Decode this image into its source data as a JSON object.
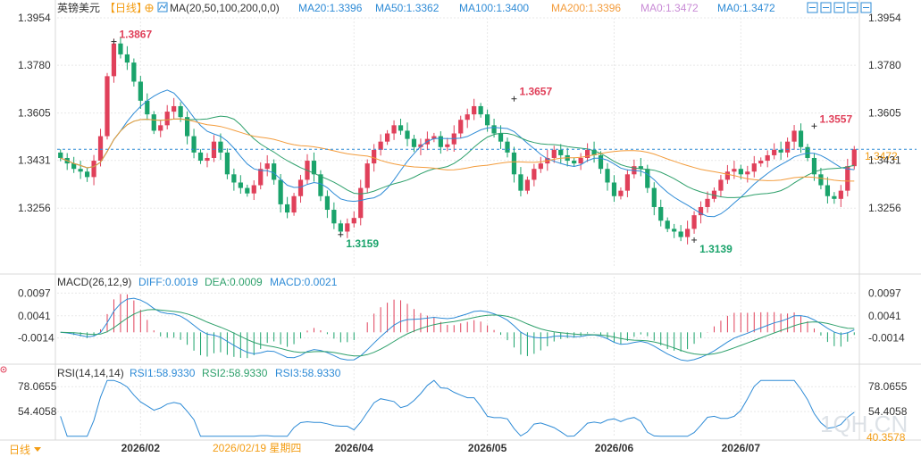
{
  "header": {
    "symbol": "英镑美元",
    "period": "【日线】",
    "ma_label": "MA(20,50,100,200,0,0)",
    "ma_values": [
      {
        "label": "MA20:1.3396",
        "color": "#2e8bd6"
      },
      {
        "label": "MA50:1.3362",
        "color": "#2e8bd6"
      },
      {
        "label": "MA100:1.3400",
        "color": "#2e8bd6"
      },
      {
        "label": "MA200:1.3396",
        "color": "#f39c3c"
      },
      {
        "label": "MA0:1.3472",
        "color": "#c98bd6"
      },
      {
        "label": "MA0:1.3472",
        "color": "#2e8bd6"
      }
    ],
    "window_icons": [
      "expand-icon",
      "compress-icon",
      "maximize-icon",
      "restore-icon",
      "next-icon"
    ]
  },
  "macd_header": {
    "label": "MACD(26,12,9)",
    "diff": "DIFF:0.0019",
    "dea": "DEA:0.0009",
    "macd": "MACD:0.0021"
  },
  "rsi_header": {
    "label": "RSI(14,14,14)",
    "rsi1": "RSI1:58.9330",
    "rsi2": "RSI2:58.9330",
    "rsi3": "RSI3:58.9330"
  },
  "footer": {
    "period_label": "日线",
    "cursor_date": "2026/02/19 星期四",
    "watermark": "1QH.CN"
  },
  "colors": {
    "up": "#e0405a",
    "down": "#1aa36b",
    "ma_blue": "#2e8bd6",
    "ma_green": "#2ea06b",
    "ma_orange": "#f39c3c",
    "grid": "#e8e8e8",
    "current_price": "#f39c12"
  },
  "chart_data": [
    {
      "type": "candlestick",
      "title": "英镑美元【日线】",
      "y_ticks": [
        "1.3954",
        "1.3780",
        "1.3605",
        "1.3431",
        "1.3256"
      ],
      "y_tick_values": [
        1.3954,
        1.378,
        1.3605,
        1.3431,
        1.3256
      ],
      "ylim": [
        1.307,
        1.3954
      ],
      "x_ticks": [
        "2026/02",
        "2026/04",
        "2026/05",
        "2026/06",
        "2026/07"
      ],
      "x_tick_bar_index": [
        12,
        44,
        64,
        83,
        102
      ],
      "annotations": [
        {
          "text": "1.3867",
          "bar": 8,
          "value": 1.3867,
          "color": "#e0405a"
        },
        {
          "text": "1.3159",
          "bar": 42,
          "value": 1.3159,
          "color": "#1aa36b"
        },
        {
          "text": "1.3657",
          "bar": 68,
          "value": 1.3657,
          "color": "#e0405a"
        },
        {
          "text": "1.3139",
          "bar": 95,
          "value": 1.3139,
          "color": "#1aa36b"
        },
        {
          "text": "1.3557",
          "bar": 113,
          "value": 1.3557,
          "color": "#e0405a"
        }
      ],
      "current_price": {
        "label": "1.3472",
        "value": 1.3472
      },
      "ohlc_closes": [
        1.344,
        1.342,
        1.34,
        1.339,
        1.337,
        1.343,
        1.352,
        1.374,
        1.386,
        1.382,
        1.379,
        1.372,
        1.365,
        1.36,
        1.354,
        1.356,
        1.361,
        1.363,
        1.359,
        1.352,
        1.346,
        1.343,
        1.344,
        1.35,
        1.346,
        1.338,
        1.335,
        1.333,
        1.331,
        1.334,
        1.34,
        1.342,
        1.336,
        1.327,
        1.324,
        1.33,
        1.336,
        1.343,
        1.338,
        1.33,
        1.325,
        1.32,
        1.317,
        1.32,
        1.322,
        1.333,
        1.342,
        1.347,
        1.35,
        1.353,
        1.356,
        1.354,
        1.351,
        1.348,
        1.349,
        1.351,
        1.352,
        1.348,
        1.349,
        1.353,
        1.358,
        1.36,
        1.363,
        1.36,
        1.356,
        1.353,
        1.35,
        1.346,
        1.338,
        1.332,
        1.336,
        1.34,
        1.342,
        1.344,
        1.347,
        1.345,
        1.343,
        1.342,
        1.344,
        1.347,
        1.345,
        1.34,
        1.335,
        1.33,
        1.332,
        1.338,
        1.341,
        1.34,
        1.333,
        1.326,
        1.321,
        1.318,
        1.317,
        1.315,
        1.318,
        1.323,
        1.326,
        1.329,
        1.332,
        1.336,
        1.339,
        1.34,
        1.338,
        1.339,
        1.342,
        1.343,
        1.345,
        1.347,
        1.346,
        1.35,
        1.354,
        1.348,
        1.344,
        1.338,
        1.334,
        1.33,
        1.329,
        1.332,
        1.341,
        1.3472
      ]
    },
    {
      "type": "bar+line",
      "name": "MACD(26,12,9)",
      "y_ticks": [
        "0.0097",
        "0.0041",
        "-0.0014"
      ],
      "y_tick_values": [
        0.0097,
        0.0041,
        -0.0014
      ],
      "ylim": [
        -0.007,
        0.012
      ]
    },
    {
      "type": "line",
      "name": "RSI(14,14,14)",
      "y_ticks": [
        "78.0655",
        "54.4058"
      ],
      "y_tick_values": [
        78.0655,
        54.4058
      ],
      "extra_labels": [
        {
          "text": "40.3578",
          "color": "#f39c12"
        }
      ],
      "ylim": [
        30,
        85
      ]
    }
  ]
}
